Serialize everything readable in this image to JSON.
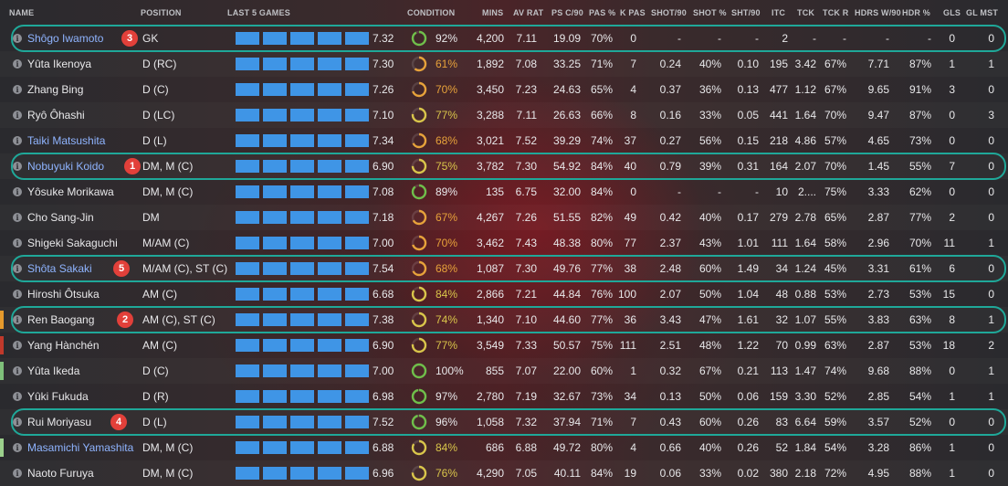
{
  "headers": {
    "name": "NAME",
    "position": "POSITION",
    "last5": "LAST 5 GAMES",
    "condition": "CONDITION",
    "mins": "MINS",
    "av_rat": "AV RAT",
    "ps_c90": "PS C/90",
    "pas_pct": "PAS %",
    "k_pas": "K PAS",
    "shot90": "SHOT/90",
    "shot_pct": "SHOT %",
    "sht90": "SHT/90",
    "itc": "ITC",
    "tck": "TCK",
    "tck_r": "TCK R",
    "hdrs_w90": "HDRS W/90",
    "hdr_pct": "HDR %",
    "gls": "GLS",
    "gl_mst": "GL MST"
  },
  "colors": {
    "accent_box": "#1fa899",
    "badge": "#e2403a",
    "bar": "#3f95e6",
    "link_name": "#8fb4ff"
  },
  "players": [
    {
      "name": "Shôgo Iwamoto",
      "hl": true,
      "pos": "GK",
      "stripe": "",
      "form": [
        1,
        1,
        1,
        1,
        1
      ],
      "avg": "7.32",
      "cond": "92%",
      "cond_val": 0.92,
      "mins": "4,200",
      "av_rat": "7.11",
      "ps_c90": "19.09",
      "pas": "70%",
      "kpas": "0",
      "shot90": "-",
      "shot": "-",
      "sht90": "-",
      "itc": "2",
      "tck": "-",
      "tckr": "-",
      "hdrs": "-",
      "hdr": "-",
      "gls": "0",
      "glmst": "0"
    },
    {
      "name": "Yûta Ikenoya",
      "hl": false,
      "pos": "D (RC)",
      "stripe": "",
      "form": [
        1,
        1,
        1,
        1,
        1
      ],
      "avg": "7.30",
      "cond": "61%",
      "cond_val": 0.61,
      "mins": "1,892",
      "av_rat": "7.08",
      "ps_c90": "33.25",
      "pas": "71%",
      "kpas": "7",
      "shot90": "0.24",
      "shot": "40%",
      "sht90": "0.10",
      "itc": "195",
      "tck": "3.42",
      "tckr": "67%",
      "hdrs": "7.71",
      "hdr": "87%",
      "gls": "1",
      "glmst": "1"
    },
    {
      "name": "Zhang Bing",
      "hl": false,
      "pos": "D (C)",
      "stripe": "",
      "form": [
        1,
        1,
        1,
        1,
        1
      ],
      "avg": "7.26",
      "cond": "70%",
      "cond_val": 0.7,
      "mins": "3,450",
      "av_rat": "7.23",
      "ps_c90": "24.63",
      "pas": "65%",
      "kpas": "4",
      "shot90": "0.37",
      "shot": "36%",
      "sht90": "0.13",
      "itc": "477",
      "tck": "1.12",
      "tckr": "67%",
      "hdrs": "9.65",
      "hdr": "91%",
      "gls": "3",
      "glmst": "0"
    },
    {
      "name": "Ryô Ôhashi",
      "hl": false,
      "pos": "D (LC)",
      "stripe": "",
      "form": [
        1,
        1,
        1,
        1,
        1
      ],
      "avg": "7.10",
      "cond": "77%",
      "cond_val": 0.77,
      "mins": "3,288",
      "av_rat": "7.11",
      "ps_c90": "26.63",
      "pas": "66%",
      "kpas": "8",
      "shot90": "0.16",
      "shot": "33%",
      "sht90": "0.05",
      "itc": "441",
      "tck": "1.64",
      "tckr": "70%",
      "hdrs": "9.47",
      "hdr": "87%",
      "gls": "0",
      "glmst": "3"
    },
    {
      "name": "Taiki Matsushita",
      "hl": true,
      "pos": "D (L)",
      "stripe": "",
      "form": [
        1,
        1,
        1,
        1,
        1
      ],
      "avg": "7.34",
      "cond": "68%",
      "cond_val": 0.68,
      "mins": "3,021",
      "av_rat": "7.52",
      "ps_c90": "39.29",
      "pas": "74%",
      "kpas": "37",
      "shot90": "0.27",
      "shot": "56%",
      "sht90": "0.15",
      "itc": "218",
      "tck": "4.86",
      "tckr": "57%",
      "hdrs": "4.65",
      "hdr": "73%",
      "gls": "0",
      "glmst": "0"
    },
    {
      "name": "Nobuyuki Koido",
      "hl": true,
      "pos": "DM, M (C)",
      "stripe": "",
      "form": [
        1,
        1,
        1,
        1,
        1
      ],
      "avg": "6.90",
      "cond": "75%",
      "cond_val": 0.75,
      "mins": "3,782",
      "av_rat": "7.30",
      "ps_c90": "54.92",
      "pas": "84%",
      "kpas": "40",
      "shot90": "0.79",
      "shot": "39%",
      "sht90": "0.31",
      "itc": "164",
      "tck": "2.07",
      "tckr": "70%",
      "hdrs": "1.45",
      "hdr": "55%",
      "gls": "7",
      "glmst": "0"
    },
    {
      "name": "Yôsuke Morikawa",
      "hl": false,
      "pos": "DM, M (C)",
      "stripe": "",
      "form": [
        1,
        1,
        1,
        1,
        1
      ],
      "avg": "7.08",
      "cond": "89%",
      "cond_val": 0.89,
      "mins": "135",
      "av_rat": "6.75",
      "ps_c90": "32.00",
      "pas": "84%",
      "kpas": "0",
      "shot90": "-",
      "shot": "-",
      "sht90": "-",
      "itc": "10",
      "tck": "2....",
      "tckr": "75%",
      "hdrs": "3.33",
      "hdr": "62%",
      "gls": "0",
      "glmst": "0"
    },
    {
      "name": "Cho Sang-Jin",
      "hl": false,
      "pos": "DM",
      "stripe": "",
      "form": [
        1,
        1,
        1,
        1,
        1
      ],
      "avg": "7.18",
      "cond": "67%",
      "cond_val": 0.67,
      "mins": "4,267",
      "av_rat": "7.26",
      "ps_c90": "51.55",
      "pas": "82%",
      "kpas": "49",
      "shot90": "0.42",
      "shot": "40%",
      "sht90": "0.17",
      "itc": "279",
      "tck": "2.78",
      "tckr": "65%",
      "hdrs": "2.87",
      "hdr": "77%",
      "gls": "2",
      "glmst": "0"
    },
    {
      "name": "Shigeki Sakaguchi",
      "hl": false,
      "pos": "M/AM (C)",
      "stripe": "",
      "form": [
        1,
        1,
        1,
        1,
        1
      ],
      "avg": "7.00",
      "cond": "70%",
      "cond_val": 0.7,
      "mins": "3,462",
      "av_rat": "7.43",
      "ps_c90": "48.38",
      "pas": "80%",
      "kpas": "77",
      "shot90": "2.37",
      "shot": "43%",
      "sht90": "1.01",
      "itc": "111",
      "tck": "1.64",
      "tckr": "58%",
      "hdrs": "2.96",
      "hdr": "70%",
      "gls": "11",
      "glmst": "1"
    },
    {
      "name": "Shôta Sakaki",
      "hl": true,
      "pos": "M/AM (C), ST (C)",
      "stripe": "",
      "form": [
        1,
        1,
        1,
        1,
        1
      ],
      "avg": "7.54",
      "cond": "68%",
      "cond_val": 0.68,
      "mins": "1,087",
      "av_rat": "7.30",
      "ps_c90": "49.76",
      "pas": "77%",
      "kpas": "38",
      "shot90": "2.48",
      "shot": "60%",
      "sht90": "1.49",
      "itc": "34",
      "tck": "1.24",
      "tckr": "45%",
      "hdrs": "3.31",
      "hdr": "61%",
      "gls": "6",
      "glmst": "0"
    },
    {
      "name": "Hiroshi Ôtsuka",
      "hl": false,
      "pos": "AM (C)",
      "stripe": "",
      "form": [
        1,
        1,
        1,
        1,
        1
      ],
      "avg": "6.68",
      "cond": "84%",
      "cond_val": 0.84,
      "mins": "2,866",
      "av_rat": "7.21",
      "ps_c90": "44.84",
      "pas": "76%",
      "kpas": "100",
      "shot90": "2.07",
      "shot": "50%",
      "sht90": "1.04",
      "itc": "48",
      "tck": "0.88",
      "tckr": "53%",
      "hdrs": "2.73",
      "hdr": "53%",
      "gls": "15",
      "glmst": "0"
    },
    {
      "name": "Ren Baogang",
      "hl": false,
      "pos": "AM (C), ST (C)",
      "stripe": "#e59a2c",
      "form": [
        1,
        1,
        1,
        1,
        1
      ],
      "avg": "7.38",
      "cond": "74%",
      "cond_val": 0.74,
      "mins": "1,340",
      "av_rat": "7.10",
      "ps_c90": "44.60",
      "pas": "77%",
      "kpas": "36",
      "shot90": "3.43",
      "shot": "47%",
      "sht90": "1.61",
      "itc": "32",
      "tck": "1.07",
      "tckr": "55%",
      "hdrs": "3.83",
      "hdr": "63%",
      "gls": "8",
      "glmst": "1"
    },
    {
      "name": "Yang Hànchén",
      "hl": false,
      "pos": "AM (C)",
      "stripe": "#c0392b",
      "form": [
        1,
        1,
        1,
        1,
        1
      ],
      "avg": "6.90",
      "cond": "77%",
      "cond_val": 0.77,
      "mins": "3,549",
      "av_rat": "7.33",
      "ps_c90": "50.57",
      "pas": "75%",
      "kpas": "111",
      "shot90": "2.51",
      "shot": "48%",
      "sht90": "1.22",
      "itc": "70",
      "tck": "0.99",
      "tckr": "63%",
      "hdrs": "2.87",
      "hdr": "53%",
      "gls": "18",
      "glmst": "2"
    },
    {
      "name": "Yûta Ikeda",
      "hl": false,
      "pos": "D (C)",
      "stripe": "#7fc07a",
      "form": [
        1,
        1,
        1,
        1,
        1
      ],
      "avg": "7.00",
      "cond": "100%",
      "cond_val": 1.0,
      "mins": "855",
      "av_rat": "7.07",
      "ps_c90": "22.00",
      "pas": "60%",
      "kpas": "1",
      "shot90": "0.32",
      "shot": "67%",
      "sht90": "0.21",
      "itc": "113",
      "tck": "1.47",
      "tckr": "74%",
      "hdrs": "9.68",
      "hdr": "88%",
      "gls": "0",
      "glmst": "1"
    },
    {
      "name": "Yûki Fukuda",
      "hl": false,
      "pos": "D (R)",
      "stripe": "",
      "form": [
        1,
        1,
        1,
        1,
        1
      ],
      "avg": "6.98",
      "cond": "97%",
      "cond_val": 0.97,
      "mins": "2,780",
      "av_rat": "7.19",
      "ps_c90": "32.67",
      "pas": "73%",
      "kpas": "34",
      "shot90": "0.13",
      "shot": "50%",
      "sht90": "0.06",
      "itc": "159",
      "tck": "3.30",
      "tckr": "52%",
      "hdrs": "2.85",
      "hdr": "54%",
      "gls": "1",
      "glmst": "1"
    },
    {
      "name": "Rui Moriyasu",
      "hl": false,
      "pos": "D (L)",
      "stripe": "",
      "form": [
        1,
        1,
        1,
        1,
        1
      ],
      "avg": "7.52",
      "cond": "96%",
      "cond_val": 0.96,
      "mins": "1,058",
      "av_rat": "7.32",
      "ps_c90": "37.94",
      "pas": "71%",
      "kpas": "7",
      "shot90": "0.43",
      "shot": "60%",
      "sht90": "0.26",
      "itc": "83",
      "tck": "6.64",
      "tckr": "59%",
      "hdrs": "3.57",
      "hdr": "52%",
      "gls": "0",
      "glmst": "0"
    },
    {
      "name": "Masamichi Yamashita",
      "hl": true,
      "pos": "DM, M (C)",
      "stripe": "#9bd08c",
      "form": [
        1,
        1,
        1,
        1,
        1
      ],
      "avg": "6.88",
      "cond": "84%",
      "cond_val": 0.84,
      "mins": "686",
      "av_rat": "6.88",
      "ps_c90": "49.72",
      "pas": "80%",
      "kpas": "4",
      "shot90": "0.66",
      "shot": "40%",
      "sht90": "0.26",
      "itc": "52",
      "tck": "1.84",
      "tckr": "54%",
      "hdrs": "3.28",
      "hdr": "86%",
      "gls": "1",
      "glmst": "0"
    },
    {
      "name": "Naoto Furuya",
      "hl": false,
      "pos": "DM, M (C)",
      "stripe": "",
      "form": [
        1,
        1,
        1,
        1,
        1
      ],
      "avg": "6.96",
      "cond": "76%",
      "cond_val": 0.76,
      "mins": "4,290",
      "av_rat": "7.05",
      "ps_c90": "40.11",
      "pas": "84%",
      "kpas": "19",
      "shot90": "0.06",
      "shot": "33%",
      "sht90": "0.02",
      "itc": "380",
      "tck": "2.18",
      "tckr": "72%",
      "hdrs": "4.95",
      "hdr": "88%",
      "gls": "1",
      "glmst": "0"
    }
  ],
  "annotations": [
    {
      "badge": "3",
      "row": 0
    },
    {
      "badge": "1",
      "row": 5
    },
    {
      "badge": "5",
      "row": 9
    },
    {
      "badge": "2",
      "row": 11
    },
    {
      "badge": "4",
      "row": 15
    }
  ]
}
